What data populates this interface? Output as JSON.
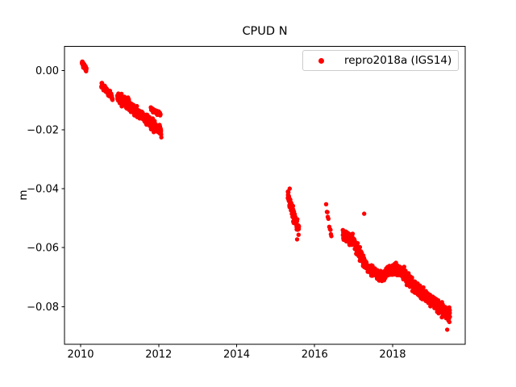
{
  "chart_data": {
    "type": "scatter",
    "title": "CPUD N",
    "xlabel": "",
    "ylabel": "m",
    "xlim": [
      2009.586,
      2019.861
    ],
    "ylim": [
      -0.0928,
      0.0082
    ],
    "xticks": [
      2010,
      2012,
      2014,
      2016,
      2018
    ],
    "xtick_labels": [
      "2010",
      "2012",
      "2014",
      "2016",
      "2018"
    ],
    "yticks": [
      0,
      -0.02,
      -0.04,
      -0.06,
      -0.08
    ],
    "ytick_labels": [
      "0.00",
      "−0.02",
      "−0.04",
      "−0.06",
      "−0.08"
    ],
    "grid": false,
    "legend_position": "upper right",
    "marker": "dot",
    "point_color": "#ff0000",
    "axis_color": "#000000",
    "legend_border_color": "#cccccc",
    "series": [
      {
        "name": "repro2018a (IGS14)",
        "color": "#ff0000",
        "segments": [
          {
            "t0": 2010.03,
            "t1": 2010.15,
            "v0": 0.0028,
            "v1": 0.0002,
            "spread": 0.0012,
            "n": 40
          },
          {
            "t0": 2010.53,
            "t1": 2010.82,
            "v0": -0.0048,
            "v1": -0.0092,
            "spread": 0.0015,
            "n": 80
          },
          {
            "t0": 2010.94,
            "t1": 2012.07,
            "v0": -0.0085,
            "v1": -0.0207,
            "spread": 0.0026,
            "n": 330
          },
          {
            "t0": 2011.8,
            "t1": 2012.05,
            "v0": -0.0128,
            "v1": -0.0148,
            "spread": 0.0013,
            "n": 40
          },
          {
            "t0": 2015.31,
            "t1": 2015.47,
            "v0": -0.0418,
            "v1": -0.05,
            "spread": 0.0036,
            "n": 60
          },
          {
            "t0": 2015.45,
            "t1": 2015.6,
            "v0": -0.0485,
            "v1": -0.0545,
            "spread": 0.0028,
            "n": 45
          },
          {
            "t0": 2016.29,
            "t1": 2016.44,
            "v0": -0.0452,
            "v1": -0.0572,
            "spread": 0.0012,
            "n": 10
          },
          {
            "t0": 2016.72,
            "t1": 2017.02,
            "v0": -0.055,
            "v1": -0.0585,
            "spread": 0.003,
            "n": 100
          },
          {
            "t0": 2017.02,
            "t1": 2017.32,
            "v0": -0.0588,
            "v1": -0.0658,
            "spread": 0.0028,
            "n": 95
          },
          {
            "t0": 2017.32,
            "t1": 2017.72,
            "v0": -0.0662,
            "v1": -0.07,
            "spread": 0.0027,
            "n": 120
          },
          {
            "t0": 2017.72,
            "t1": 2017.97,
            "v0": -0.07,
            "v1": -0.0672,
            "spread": 0.0026,
            "n": 80
          },
          {
            "t0": 2017.97,
            "t1": 2018.33,
            "v0": -0.0668,
            "v1": -0.0688,
            "spread": 0.003,
            "n": 115
          },
          {
            "t0": 2018.33,
            "t1": 2018.72,
            "v0": -0.07,
            "v1": -0.075,
            "spread": 0.003,
            "n": 120
          },
          {
            "t0": 2018.72,
            "t1": 2019.12,
            "v0": -0.0752,
            "v1": -0.0794,
            "spread": 0.003,
            "n": 125
          },
          {
            "t0": 2019.12,
            "t1": 2019.47,
            "v0": -0.0796,
            "v1": -0.0828,
            "spread": 0.0032,
            "n": 110
          }
        ],
        "outliers": [
          [
            2015.36,
            -0.04
          ],
          [
            2015.55,
            -0.0572
          ],
          [
            2017.27,
            -0.0485
          ],
          [
            2019.4,
            -0.0878
          ]
        ]
      }
    ]
  }
}
